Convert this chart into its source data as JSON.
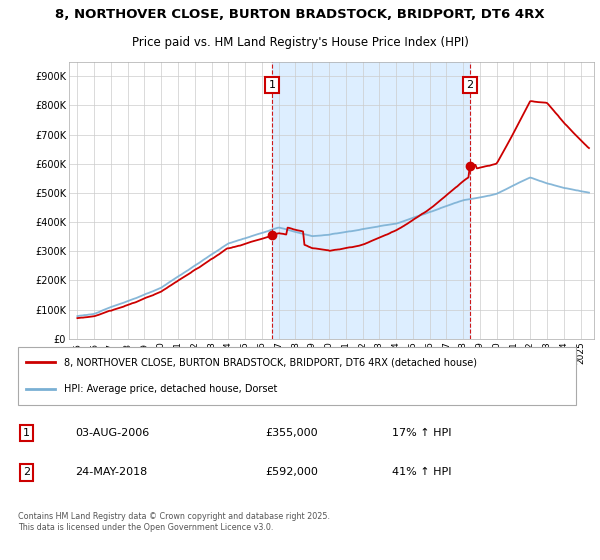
{
  "title_line1": "8, NORTHOVER CLOSE, BURTON BRADSTOCK, BRIDPORT, DT6 4RX",
  "title_line2": "Price paid vs. HM Land Registry's House Price Index (HPI)",
  "background_color": "#ffffff",
  "grid_color": "#cccccc",
  "red_color": "#cc0000",
  "blue_color": "#7ab0d4",
  "shade_color": "#ddeeff",
  "legend_red": "8, NORTHOVER CLOSE, BURTON BRADSTOCK, BRIDPORT, DT6 4RX (detached house)",
  "legend_blue": "HPI: Average price, detached house, Dorset",
  "footer": "Contains HM Land Registry data © Crown copyright and database right 2025.\nThis data is licensed under the Open Government Licence v3.0.",
  "ylim": [
    0,
    950000
  ],
  "yticks": [
    0,
    100000,
    200000,
    300000,
    400000,
    500000,
    600000,
    700000,
    800000,
    900000
  ],
  "ytick_labels": [
    "£0",
    "£100K",
    "£200K",
    "£300K",
    "£400K",
    "£500K",
    "£600K",
    "£700K",
    "£800K",
    "£900K"
  ],
  "sale1_year": 2006.58,
  "sale2_year": 2018.37,
  "sale1_price": 355000,
  "sale2_price": 592000
}
